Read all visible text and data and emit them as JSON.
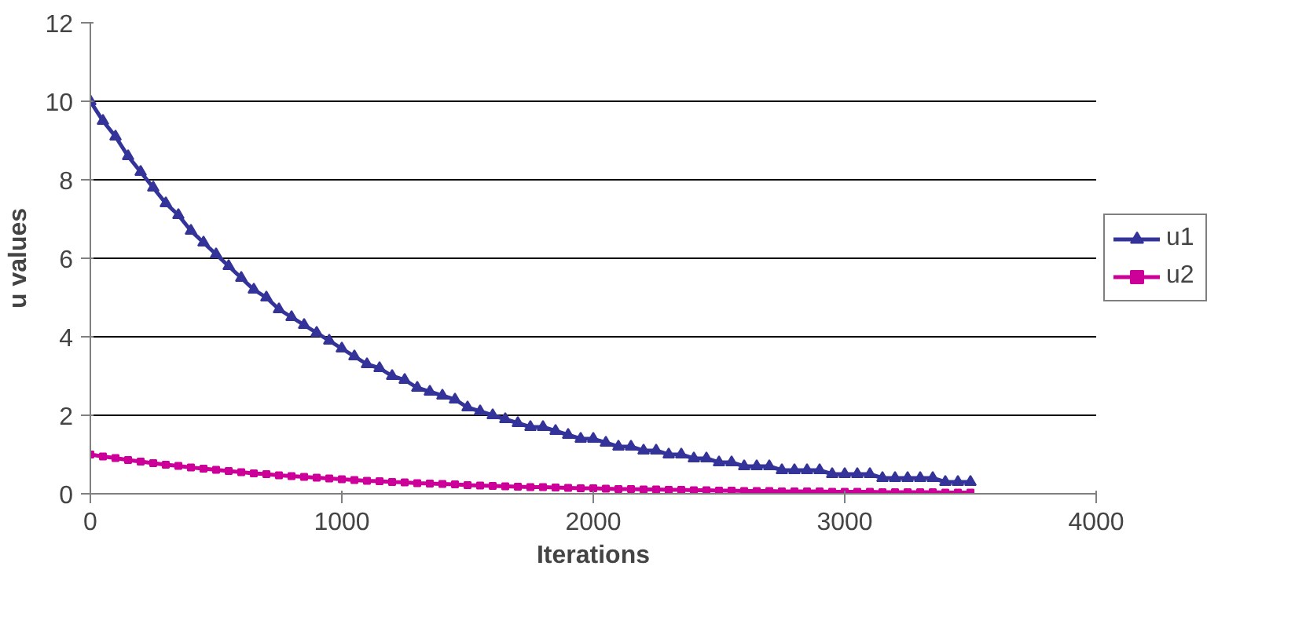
{
  "chart_data": {
    "type": "line",
    "xlabel": "Iterations",
    "ylabel": "u values",
    "x": [
      0,
      50,
      100,
      150,
      200,
      250,
      300,
      350,
      400,
      450,
      500,
      550,
      600,
      650,
      700,
      750,
      800,
      850,
      900,
      950,
      1000,
      1050,
      1100,
      1150,
      1200,
      1250,
      1300,
      1350,
      1400,
      1450,
      1500,
      1550,
      1600,
      1650,
      1700,
      1750,
      1800,
      1850,
      1900,
      1950,
      2000,
      2050,
      2100,
      2150,
      2200,
      2250,
      2300,
      2350,
      2400,
      2450,
      2500,
      2550,
      2600,
      2650,
      2700,
      2750,
      2800,
      2850,
      2900,
      2950,
      3000,
      3050,
      3100,
      3150,
      3200,
      3250,
      3300,
      3350,
      3400,
      3450,
      3500
    ],
    "series": [
      {
        "name": "u1",
        "color": "#333399",
        "marker": "triangle",
        "values": [
          10,
          9.5,
          9.1,
          8.6,
          8.2,
          7.8,
          7.4,
          7.1,
          6.7,
          6.4,
          6.1,
          5.8,
          5.5,
          5.2,
          5.0,
          4.7,
          4.5,
          4.3,
          4.1,
          3.9,
          3.7,
          3.5,
          3.3,
          3.2,
          3.0,
          2.9,
          2.7,
          2.6,
          2.5,
          2.4,
          2.2,
          2.1,
          2.0,
          1.9,
          1.8,
          1.7,
          1.7,
          1.6,
          1.5,
          1.4,
          1.4,
          1.3,
          1.2,
          1.2,
          1.1,
          1.1,
          1.0,
          1.0,
          0.9,
          0.9,
          0.8,
          0.8,
          0.7,
          0.7,
          0.7,
          0.6,
          0.6,
          0.6,
          0.6,
          0.5,
          0.5,
          0.5,
          0.5,
          0.4,
          0.4,
          0.4,
          0.4,
          0.4,
          0.3,
          0.3,
          0.3
        ]
      },
      {
        "name": "u2",
        "color": "#cc0099",
        "marker": "square",
        "values": [
          1.0,
          0.95,
          0.91,
          0.86,
          0.82,
          0.78,
          0.74,
          0.71,
          0.67,
          0.64,
          0.61,
          0.58,
          0.55,
          0.52,
          0.5,
          0.47,
          0.45,
          0.43,
          0.41,
          0.39,
          0.37,
          0.35,
          0.33,
          0.32,
          0.3,
          0.29,
          0.27,
          0.26,
          0.25,
          0.24,
          0.22,
          0.21,
          0.2,
          0.19,
          0.18,
          0.17,
          0.17,
          0.16,
          0.15,
          0.14,
          0.14,
          0.13,
          0.12,
          0.12,
          0.11,
          0.11,
          0.1,
          0.1,
          0.09,
          0.09,
          0.08,
          0.08,
          0.07,
          0.07,
          0.07,
          0.06,
          0.06,
          0.06,
          0.06,
          0.05,
          0.05,
          0.05,
          0.05,
          0.04,
          0.04,
          0.04,
          0.04,
          0.04,
          0.03,
          0.03,
          0.03
        ]
      }
    ],
    "xlim": [
      0,
      4000
    ],
    "xticks": [
      0,
      1000,
      2000,
      3000,
      4000
    ],
    "ylim": [
      0,
      12
    ],
    "yticks": [
      0,
      2,
      4,
      6,
      8,
      10,
      12
    ],
    "grid": "y",
    "legend": "right",
    "line_style": "solid"
  }
}
